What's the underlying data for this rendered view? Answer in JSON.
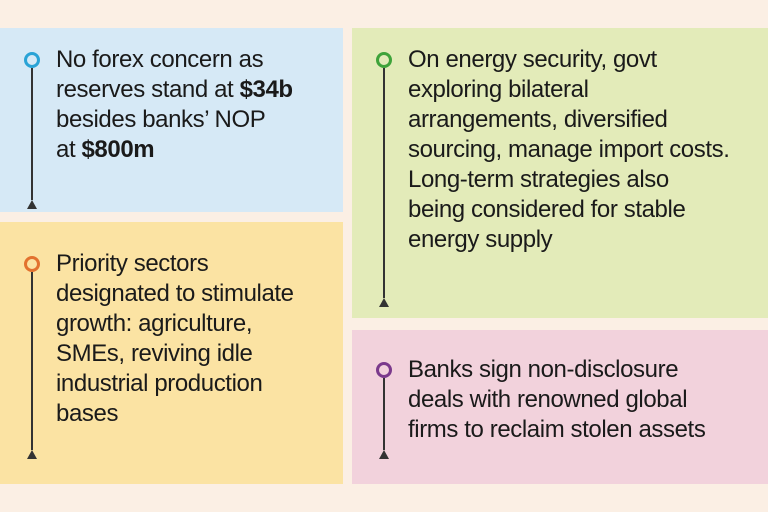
{
  "panels": {
    "forex": {
      "line1": "No forex concern as",
      "line2_pre": "reserves stand at ",
      "line2_bold": "$34b",
      "line3": "besides banks’ NOP",
      "line4_pre": "at ",
      "line4_bold": "$800m",
      "accent": "#2aa3d6"
    },
    "energy": {
      "text": "On energy security, govt\nexploring bilateral\narrangements, diversified\nsourcing, manage import costs.\nLong-term strategies also\nbeing considered for stable\nenergy supply",
      "accent": "#3fa33a"
    },
    "priority": {
      "text": "Priority sectors\ndesignated to stimulate\ngrowth: agriculture,\nSMEs, reviving idle\nindustrial production\nbases",
      "accent": "#e2722f"
    },
    "banks": {
      "text": "Banks sign non-disclosure\ndeals with renowned global\nfirms to reclaim stolen assets",
      "accent": "#7b3a8c"
    }
  },
  "icons": {
    "marker": "circle-pin-with-arrow-icon"
  }
}
